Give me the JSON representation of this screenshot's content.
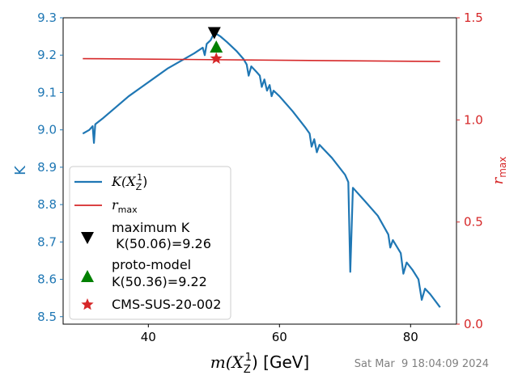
{
  "chart_data": {
    "type": "line",
    "timestamp": "Sat Mar  9 18:04:09 2024",
    "xlabel": "m(X_Z^1) [GeV]",
    "xlabel_parts": {
      "pre": "m(",
      "sym": "X",
      "sub": "Z",
      "sup": "1",
      "post": ") [GeV]"
    },
    "ylabel_left": "K",
    "ylabel_right": "r_max",
    "ylabel_right_parts": {
      "sym": "r",
      "sub": "max"
    },
    "xlim": [
      27,
      87
    ],
    "ylim_left": [
      8.48,
      9.3
    ],
    "ylim_right": [
      0.0,
      1.5
    ],
    "xticks": [
      40,
      60,
      80
    ],
    "yticks_left": [
      8.5,
      8.6,
      8.7,
      8.8,
      8.9,
      9.0,
      9.1,
      9.2,
      9.3
    ],
    "yticks_right": [
      0.0,
      0.5,
      1.0,
      1.5
    ],
    "colors": {
      "K": "#1f77b4",
      "rmax": "#d62728",
      "max_marker": "#000000",
      "proto": "#008000",
      "cms": "#d62728",
      "axis_left": "#1f77b4",
      "axis_right": "#d62728",
      "timestamp": "#808080"
    },
    "legend_position": "center-left",
    "legend": [
      {
        "key": "K",
        "label_sym": "K(X",
        "label_sub": "Z",
        "label_sup": "1",
        "label_post": ")"
      },
      {
        "key": "rmax",
        "label_sym": "r",
        "label_sub": "max"
      },
      {
        "key": "max",
        "line1": "maximum K",
        "line2": " K(50.06)=9.26"
      },
      {
        "key": "proto",
        "line1": "proto-model",
        "line2": "K(50.36)=9.22"
      },
      {
        "key": "cms",
        "line1": "CMS-SUS-20-002"
      }
    ],
    "series": [
      {
        "name": "K(X_Z^1)",
        "axis": "left",
        "points": [
          [
            30.0,
            8.99
          ],
          [
            31.0,
            9.0
          ],
          [
            31.5,
            9.01
          ],
          [
            31.7,
            8.965
          ],
          [
            31.9,
            9.015
          ],
          [
            33.0,
            9.03
          ],
          [
            35.0,
            9.06
          ],
          [
            37.0,
            9.09
          ],
          [
            39.0,
            9.115
          ],
          [
            41.0,
            9.14
          ],
          [
            43.0,
            9.165
          ],
          [
            45.0,
            9.185
          ],
          [
            47.0,
            9.205
          ],
          [
            48.3,
            9.22
          ],
          [
            48.6,
            9.2
          ],
          [
            48.9,
            9.23
          ],
          [
            49.5,
            9.24
          ],
          [
            50.06,
            9.26
          ],
          [
            51.0,
            9.25
          ],
          [
            52.0,
            9.235
          ],
          [
            53.5,
            9.21
          ],
          [
            54.5,
            9.19
          ],
          [
            55.0,
            9.175
          ],
          [
            55.3,
            9.145
          ],
          [
            55.7,
            9.17
          ],
          [
            56.5,
            9.155
          ],
          [
            57.0,
            9.145
          ],
          [
            57.3,
            9.115
          ],
          [
            57.7,
            9.135
          ],
          [
            58.1,
            9.105
          ],
          [
            58.5,
            9.12
          ],
          [
            58.8,
            9.09
          ],
          [
            59.1,
            9.105
          ],
          [
            60.0,
            9.09
          ],
          [
            62.0,
            9.05
          ],
          [
            64.0,
            9.005
          ],
          [
            64.6,
            8.99
          ],
          [
            64.9,
            8.955
          ],
          [
            65.3,
            8.975
          ],
          [
            65.7,
            8.94
          ],
          [
            66.1,
            8.96
          ],
          [
            68.0,
            8.925
          ],
          [
            70.0,
            8.88
          ],
          [
            70.5,
            8.86
          ],
          [
            70.8,
            8.62
          ],
          [
            71.2,
            8.845
          ],
          [
            73.0,
            8.81
          ],
          [
            75.0,
            8.77
          ],
          [
            76.6,
            8.72
          ],
          [
            76.9,
            8.685
          ],
          [
            77.3,
            8.705
          ],
          [
            78.5,
            8.67
          ],
          [
            78.9,
            8.615
          ],
          [
            79.4,
            8.645
          ],
          [
            80.3,
            8.625
          ],
          [
            81.2,
            8.6
          ],
          [
            81.7,
            8.545
          ],
          [
            82.2,
            8.575
          ],
          [
            83.0,
            8.56
          ],
          [
            84.5,
            8.525
          ]
        ]
      },
      {
        "name": "r_max",
        "axis": "right",
        "points": [
          [
            30.0,
            1.3
          ],
          [
            84.5,
            1.286
          ]
        ]
      }
    ],
    "markers": [
      {
        "key": "max",
        "label": "maximum K",
        "x": 50.06,
        "y": 9.26,
        "axis": "left",
        "shape": "triangle-down"
      },
      {
        "key": "proto",
        "label": "proto-model",
        "x": 50.36,
        "y": 9.22,
        "axis": "left",
        "shape": "triangle-up"
      },
      {
        "key": "cms",
        "label": "CMS-SUS-20-002",
        "x": 50.36,
        "y": 1.3,
        "axis": "right",
        "shape": "star"
      }
    ]
  }
}
